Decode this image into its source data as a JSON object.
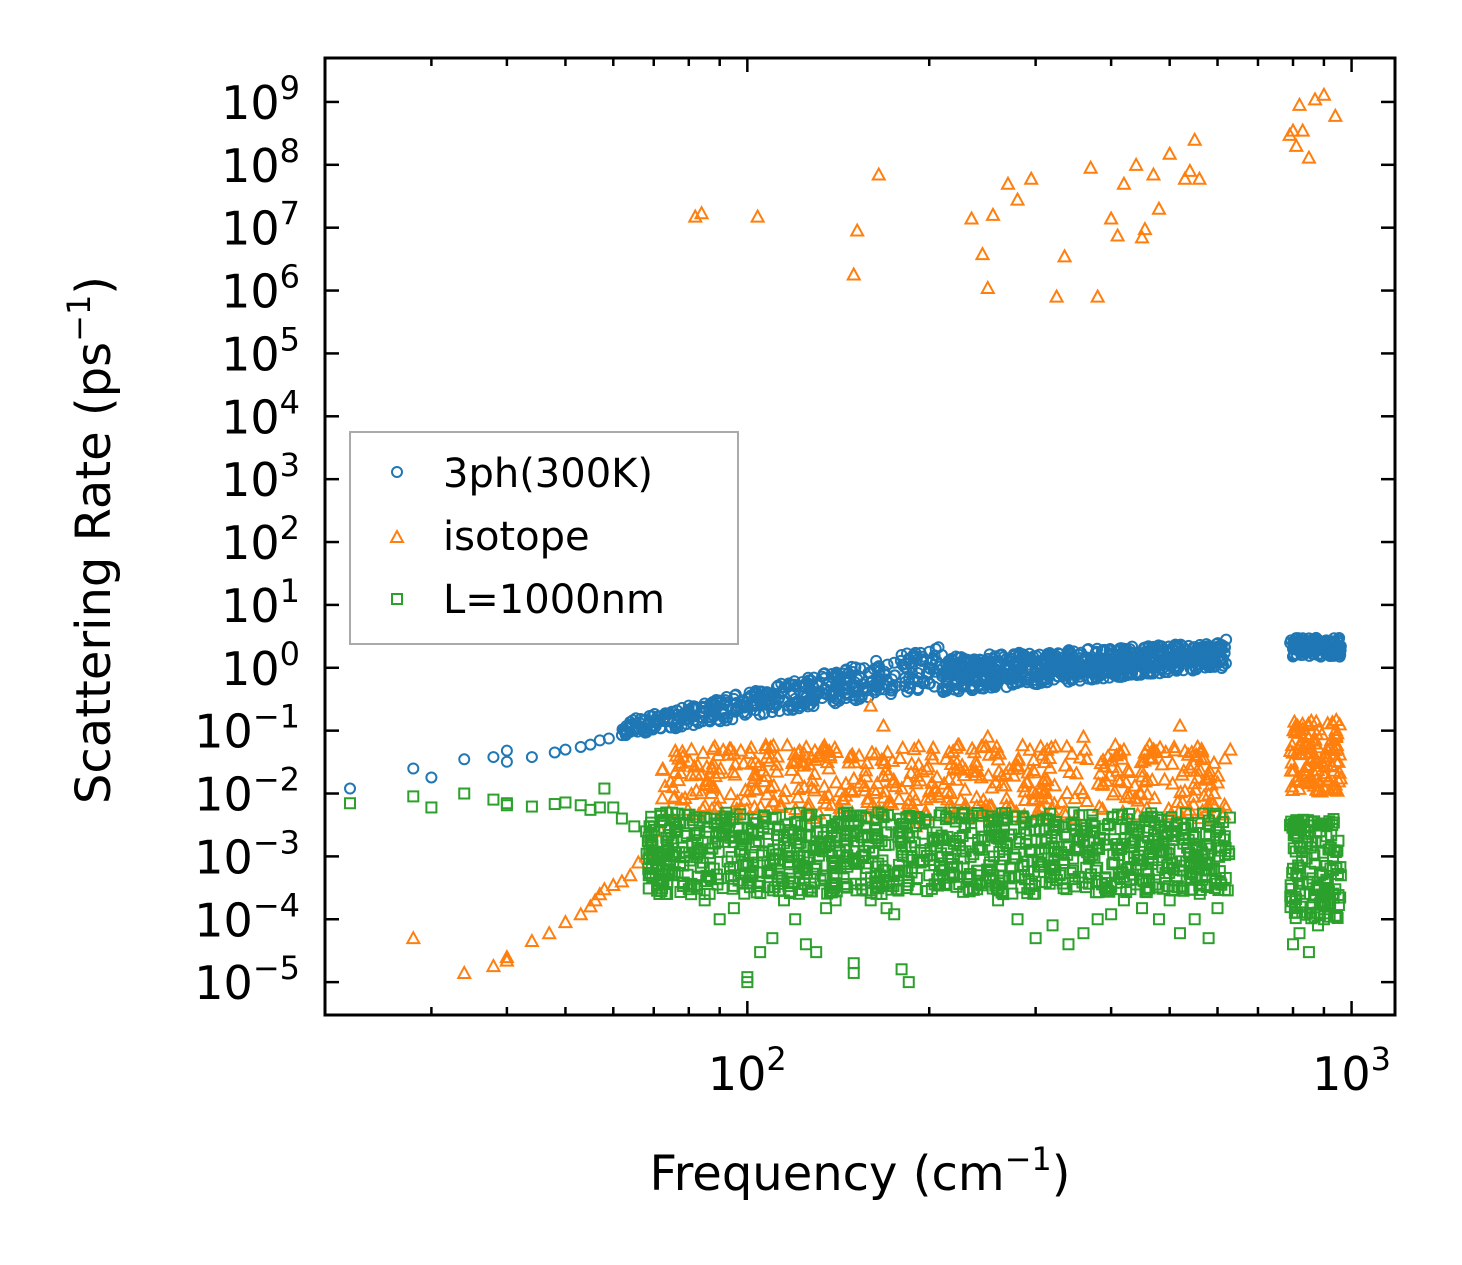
{
  "chart_data": {
    "type": "scatter",
    "xscale": "log",
    "yscale": "log",
    "xlim": [
      20,
      1180
    ],
    "ylim": [
      3e-06,
      5000000000
    ],
    "xlabel": "Frequency (cm",
    "xlabel_sup": "−1",
    "xlabel_end": ")",
    "ylabel": "Scattering Rate (ps",
    "ylabel_sup": "−1",
    "ylabel_end": ")",
    "xtick_labels": [
      {
        "value": 100,
        "base": "10",
        "exp": "2"
      },
      {
        "value": 1000,
        "base": "10",
        "exp": "3"
      }
    ],
    "ytick_labels": [
      {
        "value": 1e-05,
        "base": "10",
        "exp": "−5"
      },
      {
        "value": 0.0001,
        "base": "10",
        "exp": "−4"
      },
      {
        "value": 0.001,
        "base": "10",
        "exp": "−3"
      },
      {
        "value": 0.01,
        "base": "10",
        "exp": "−2"
      },
      {
        "value": 0.1,
        "base": "10",
        "exp": "−1"
      },
      {
        "value": 1,
        "base": "10",
        "exp": "0"
      },
      {
        "value": 10,
        "base": "10",
        "exp": "1"
      },
      {
        "value": 100,
        "base": "10",
        "exp": "2"
      },
      {
        "value": 1000,
        "base": "10",
        "exp": "3"
      },
      {
        "value": 10000,
        "base": "10",
        "exp": "4"
      },
      {
        "value": 100000,
        "base": "10",
        "exp": "5"
      },
      {
        "value": 1000000,
        "base": "10",
        "exp": "6"
      },
      {
        "value": 10000000,
        "base": "10",
        "exp": "7"
      },
      {
        "value": 100000000,
        "base": "10",
        "exp": "8"
      },
      {
        "value": 1000000000,
        "base": "10",
        "exp": "9"
      }
    ],
    "legend_position": "center-left",
    "series": [
      {
        "name": "3ph(300K)",
        "marker": "circle",
        "color": "#1f77b4",
        "x": [
          22,
          28,
          30,
          34,
          38,
          40,
          40,
          44,
          48,
          50,
          53,
          55,
          57,
          59,
          62,
          65,
          68,
          70,
          72,
          75,
          78,
          80,
          82,
          85,
          88,
          90,
          92,
          95,
          98,
          100,
          103,
          105,
          108,
          110,
          113,
          115,
          118,
          120,
          123,
          125,
          128,
          130,
          133,
          135,
          138,
          140,
          145,
          150,
          155,
          160,
          165,
          170,
          175,
          180,
          185,
          190,
          195,
          200,
          205,
          210,
          215,
          220,
          225,
          230,
          240,
          250,
          260,
          270,
          280,
          290,
          300,
          310,
          320,
          330,
          340,
          350,
          360,
          370,
          380,
          390,
          400,
          410,
          420,
          430,
          440,
          450,
          460,
          470,
          480,
          490,
          500,
          510,
          520,
          530,
          540,
          550,
          560,
          570,
          580,
          590,
          600,
          610,
          620,
          800,
          810,
          820,
          830,
          840,
          850,
          860,
          870,
          880,
          890,
          900,
          910,
          920,
          940,
          960
        ],
        "y": [
          0.012,
          0.025,
          0.018,
          0.035,
          0.038,
          0.048,
          0.032,
          0.038,
          0.045,
          0.05,
          0.055,
          0.06,
          0.07,
          0.075,
          0.085,
          0.1,
          0.12,
          0.14,
          0.17,
          0.2,
          0.23,
          0.25,
          0.24,
          0.27,
          0.26,
          0.3,
          0.28,
          0.32,
          0.3,
          0.33,
          0.35,
          0.33,
          0.36,
          0.38,
          0.34,
          0.3,
          0.26,
          0.32,
          0.28,
          0.34,
          0.31,
          0.36,
          0.33,
          0.38,
          0.35,
          0.4,
          0.45,
          0.5,
          0.55,
          0.6,
          0.52,
          0.65,
          1.2,
          1.6,
          1.4,
          1.7,
          1.5,
          1.8,
          2.0,
          1.6,
          1.2,
          0.6,
          0.8,
          0.7,
          0.85,
          0.9,
          0.75,
          0.95,
          0.8,
          1.0,
          0.85,
          0.7,
          0.9,
          1.0,
          0.6,
          1.1,
          0.95,
          1.0,
          1.05,
          1.1,
          1.0,
          1.15,
          1.05,
          1.2,
          1.1,
          1.25,
          1.15,
          1.3,
          1.2,
          1.35,
          1.25,
          1.4,
          1.5,
          1.45,
          1.6,
          1.55,
          1.7,
          1.65,
          1.8,
          1.9,
          2.0,
          2.3,
          2.8,
          2.0,
          2.3,
          2.5,
          2.2,
          2.6,
          2.1,
          1.8,
          2.4,
          2.7,
          2.2,
          2.5,
          2.3,
          2.0,
          2.4,
          2.2
        ],
        "dense_bands": [
          {
            "xmin": 62,
            "xmax": 210,
            "ymin_start": 0.08,
            "ymin_end": 0.5,
            "ymax_start": 0.14,
            "ymax_end": 2.3,
            "count": 420
          },
          {
            "xmin": 210,
            "xmax": 620,
            "ymin_start": 0.4,
            "ymin_end": 1.0,
            "ymax_start": 1.5,
            "ymax_end": 2.6,
            "count": 700
          },
          {
            "xmin": 790,
            "xmax": 960,
            "ymin_start": 1.5,
            "ymin_end": 1.5,
            "ymax_start": 3.0,
            "ymax_end": 3.0,
            "count": 120
          }
        ]
      },
      {
        "name": "isotope",
        "marker": "triangle",
        "color": "#ff7f0e",
        "x": [
          28,
          34,
          38,
          40,
          40,
          44,
          47,
          50,
          53,
          55,
          56,
          57,
          58,
          60,
          62,
          64,
          66,
          68,
          70,
          72,
          72,
          82,
          84,
          104,
          150,
          152,
          165,
          168,
          160,
          235,
          245,
          250,
          255,
          270,
          280,
          295,
          325,
          335,
          370,
          380,
          400,
          410,
          420,
          440,
          450,
          455,
          470,
          480,
          500,
          530,
          540,
          550,
          560,
          790,
          800,
          810,
          820,
          830,
          850,
          870,
          900,
          940,
          190,
          250,
          300,
          360,
          420,
          520,
          580,
          600,
          630
        ],
        "y": [
          5e-05,
          1.4e-05,
          1.8e-05,
          2.2e-05,
          2.5e-05,
          4.5e-05,
          6e-05,
          9e-05,
          0.00012,
          0.00016,
          0.0002,
          0.00025,
          0.0003,
          0.00035,
          0.0004,
          0.0005,
          0.0008,
          0.001,
          0.0015,
          0.0025,
          0.0004,
          15000000,
          17000000,
          15000000,
          1800000,
          9000000,
          70000000,
          0.12,
          0.25,
          14000000,
          3800000,
          1100000,
          16000000,
          50000000,
          28000000,
          60000000,
          800000,
          3500000,
          90000000,
          800000,
          14000000,
          7500000,
          50000000,
          100000000,
          7000000,
          9500000,
          70000000,
          20000000,
          150000000,
          60000000,
          80000000,
          250000000,
          60000000,
          300000000,
          350000000,
          200000000,
          900000000,
          350000000,
          130000000,
          1100000000,
          1300000000,
          600000000,
          0.003,
          0.08,
          0.01,
          0.08,
          0.05,
          0.12,
          0.02,
          0.015,
          0.05
        ],
        "dense_bands": [
          {
            "xmin": 72,
            "xmax": 620,
            "ymin_start": 0.004,
            "ymin_end": 0.004,
            "ymax_start": 0.06,
            "ymax_end": 0.06,
            "count": 520
          },
          {
            "xmin": 790,
            "xmax": 960,
            "ymin_start": 0.01,
            "ymin_end": 0.01,
            "ymax_start": 0.15,
            "ymax_end": 0.15,
            "count": 120
          }
        ]
      },
      {
        "name": "L=1000nm",
        "marker": "square",
        "color": "#2ca02c",
        "x": [
          22,
          28,
          30,
          34,
          38,
          40,
          40,
          44,
          48,
          50,
          53,
          55,
          57,
          58,
          60,
          62,
          65,
          68,
          70,
          72,
          75,
          80,
          85,
          90,
          95,
          100,
          100,
          105,
          110,
          115,
          120,
          125,
          130,
          135,
          140,
          150,
          150,
          155,
          160,
          170,
          175,
          180,
          185,
          185,
          190,
          200,
          220,
          240,
          260,
          280,
          300,
          320,
          340,
          360,
          380,
          400,
          420,
          450,
          480,
          500,
          520,
          550,
          580,
          600,
          800,
          820,
          850,
          880,
          900,
          920,
          940,
          960
        ],
        "y": [
          0.007,
          0.009,
          0.006,
          0.01,
          0.008,
          0.007,
          0.0065,
          0.0062,
          0.0068,
          0.0072,
          0.0065,
          0.0055,
          0.006,
          0.012,
          0.006,
          0.004,
          0.003,
          0.0025,
          0.003,
          0.0035,
          0.0005,
          0.0003,
          0.0002,
          0.0001,
          0.00015,
          1.2e-05,
          1e-05,
          3e-05,
          5e-05,
          0.0002,
          0.0001,
          4e-05,
          3e-05,
          0.00015,
          0.0002,
          1.4e-05,
          2e-05,
          0.0003,
          0.0002,
          0.00015,
          0.00012,
          1.6e-05,
          1e-05,
          0.0004,
          0.0003,
          0.0005,
          0.0005,
          0.0003,
          0.0002,
          0.0001,
          5e-05,
          8e-05,
          4e-05,
          6e-05,
          0.0001,
          0.00012,
          0.0002,
          0.00015,
          0.0001,
          0.0002,
          6e-05,
          0.0001,
          5e-05,
          0.00015,
          4e-05,
          6e-05,
          3e-05,
          8e-05,
          0.0001,
          0.0002,
          0.0003,
          0.0005
        ],
        "dense_bands": [
          {
            "xmin": 68,
            "xmax": 630,
            "ymin_start": 0.00025,
            "ymin_end": 0.00025,
            "ymax_start": 0.005,
            "ymax_end": 0.005,
            "count": 1100
          },
          {
            "xmin": 790,
            "xmax": 960,
            "ymin_start": 0.0001,
            "ymin_end": 0.0001,
            "ymax_start": 0.004,
            "ymax_end": 0.004,
            "count": 150
          }
        ]
      }
    ]
  }
}
